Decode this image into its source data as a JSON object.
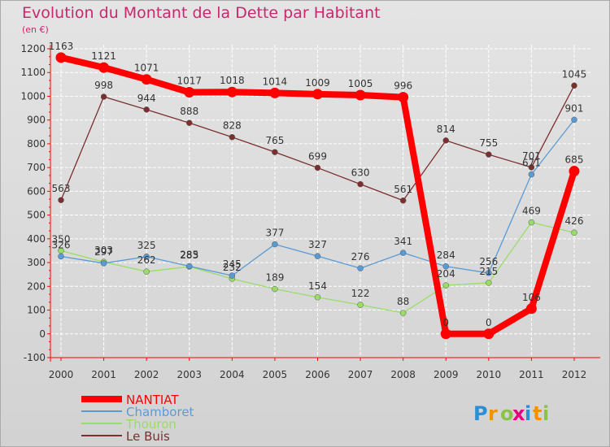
{
  "colors": {
    "title": "#c8286e",
    "axis": "#ff0000",
    "grid": "#ffffff",
    "text": "#333333",
    "logo_p": "#2a8fd4",
    "logo_r": "#f39200",
    "logo_o": "#8bc34a",
    "logo_x": "#e6007e",
    "logo_i": "#2a8fd4",
    "logo_t": "#f39200",
    "logo_i2": "#8bc34a"
  },
  "logo": {
    "text": "Proxiti",
    "letters": [
      "P",
      "r",
      "o",
      "x",
      "i",
      "t",
      "i"
    ]
  },
  "chart_data": {
    "type": "line",
    "title": "Evolution du Montant de la Dette par Habitant",
    "subtitle": "(en €)",
    "xlabel": "",
    "ylabel": "",
    "ylim": [
      -100,
      1200
    ],
    "yticks": [
      -100,
      0,
      100,
      200,
      300,
      400,
      500,
      600,
      700,
      800,
      900,
      1000,
      1100,
      1200
    ],
    "x": [
      "2000",
      "2001",
      "2002",
      "2003",
      "2004",
      "2005",
      "2006",
      "2007",
      "2008",
      "2009",
      "2010",
      "2011",
      "2012"
    ],
    "grid": true,
    "legend_position": "bottom-left",
    "series": [
      {
        "name": "NANTIAT",
        "color": "#ff0000",
        "width": "thick",
        "values": [
          1163,
          1121,
          1071,
          1017,
          1018,
          1014,
          1009,
          1005,
          996,
          0,
          0,
          106,
          685
        ]
      },
      {
        "name": "Chamboret",
        "color": "#5b9bd5",
        "width": "thin",
        "values": [
          326,
          297,
          325,
          285,
          245,
          377,
          327,
          276,
          341,
          284,
          256,
          671,
          901
        ]
      },
      {
        "name": "Thouron",
        "color": "#99dd66",
        "width": "thin",
        "values": [
          350,
          303,
          262,
          283,
          232,
          189,
          154,
          122,
          88,
          204,
          215,
          469,
          426
        ]
      },
      {
        "name": "Le Buis",
        "color": "#7b2f2f",
        "width": "thin",
        "values": [
          563,
          998,
          944,
          888,
          828,
          765,
          699,
          630,
          561,
          814,
          755,
          701,
          1045
        ]
      }
    ]
  }
}
